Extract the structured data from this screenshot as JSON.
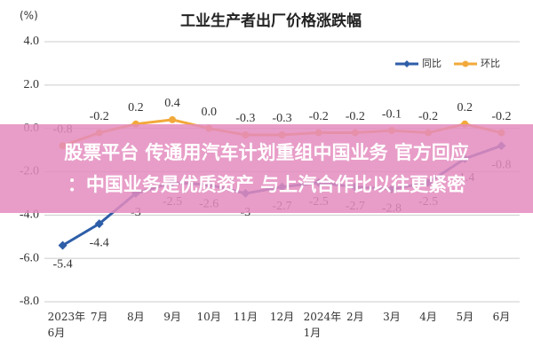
{
  "chart_data": {
    "type": "line",
    "title": "工业生产者出厂价格涨跌幅",
    "y_unit": "(%)",
    "categories": [
      "2023年\n6月",
      "7月",
      "8月",
      "9月",
      "10月",
      "11月",
      "12月",
      "2024年\n1月",
      "2月",
      "3月",
      "4月",
      "5月",
      "6月"
    ],
    "series": [
      {
        "name": "同比",
        "color": "#2e5ea8",
        "values": [
          -5.4,
          -4.4,
          -3.0,
          -2.5,
          -2.6,
          -3.0,
          -2.7,
          -2.5,
          -2.7,
          -2.8,
          -2.5,
          -1.4,
          -0.8
        ]
      },
      {
        "name": "环比",
        "color": "#f2a93b",
        "values": [
          -0.8,
          -0.2,
          0.2,
          0.4,
          0.0,
          -0.3,
          -0.3,
          -0.2,
          -0.2,
          -0.1,
          -0.2,
          0.2,
          -0.2
        ],
        "value_labels": [
          "-0.8",
          "-0.2",
          "0.2",
          "0.4",
          "0.0",
          "-0.3",
          "-0.3",
          "-0.2",
          "-0.2",
          "-0.1",
          "-0.2",
          "0.2",
          "-0.2"
        ]
      }
    ],
    "ylim": [
      -8,
      4
    ],
    "yticks": [
      {
        "value": -8,
        "label": "-8.0"
      },
      {
        "value": -6,
        "label": "-6.0"
      },
      {
        "value": -4,
        "label": "-4.0"
      },
      {
        "value": -2,
        "label": "-2.0"
      },
      {
        "value": 0,
        "label": "0.0"
      },
      {
        "value": 2,
        "label": "2.0"
      },
      {
        "value": 4,
        "label": "4.0"
      }
    ],
    "grid": true,
    "legend": "top-right"
  },
  "overlay": {
    "lines": [
      "股票平台 传通用汽车计划重组中国业务 官方回应",
      "：中国业务是优质资产 与上汽合作比以往更紧密"
    ]
  }
}
